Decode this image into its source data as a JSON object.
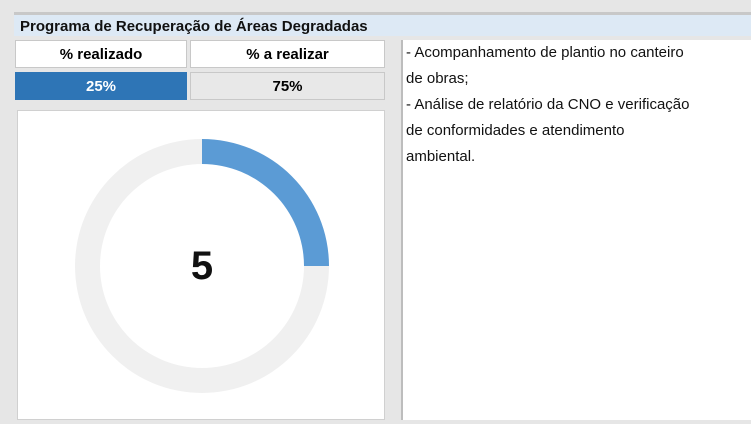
{
  "title": "Programa de Recuperação de Áreas Degradadas",
  "chart_data": {
    "type": "donut",
    "categories": [
      "% realizado",
      "% a realizar"
    ],
    "values": [
      25,
      75
    ],
    "value_labels": [
      "25%",
      "75%"
    ],
    "colors": [
      "#5b9bd5",
      "#f0f0f0"
    ],
    "center_label": "5"
  },
  "notes": [
    "- Acompanhamento de plantio no canteiro",
    "de obras;",
    "- Análise de relatório da CNO e verificação",
    "de conformidades e atendimento",
    "ambiental."
  ]
}
